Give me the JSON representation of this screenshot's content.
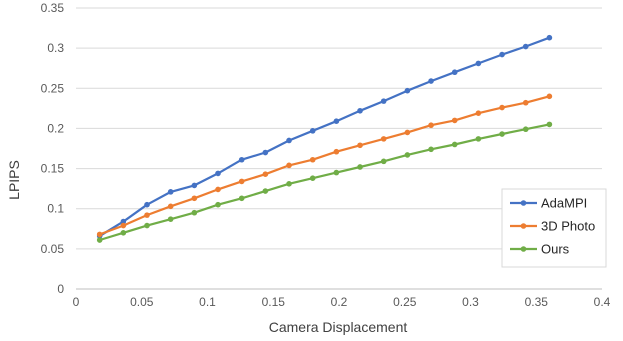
{
  "chart_data": {
    "type": "line",
    "title": "",
    "xlabel": "Camera Displacement",
    "ylabel": "LPIPS",
    "xlim": [
      0,
      0.4
    ],
    "ylim": [
      0,
      0.35
    ],
    "x_ticks": [
      "0",
      "0.05",
      "0.1",
      "0.15",
      "0.2",
      "0.25",
      "0.3",
      "0.35",
      "0.4"
    ],
    "y_ticks": [
      "0",
      "0.05",
      "0.1",
      "0.15",
      "0.2",
      "0.25",
      "0.3",
      "0.35"
    ],
    "grid": "horizontal",
    "legend_position": "bottom-right",
    "x": [
      0.018,
      0.036,
      0.054,
      0.072,
      0.09,
      0.108,
      0.126,
      0.144,
      0.162,
      0.18,
      0.198,
      0.216,
      0.234,
      0.252,
      0.27,
      0.288,
      0.306,
      0.324,
      0.342,
      0.36
    ],
    "series": [
      {
        "name": "AdaMPI",
        "color": "#4472C4",
        "values": [
          0.066,
          0.084,
          0.105,
          0.121,
          0.129,
          0.144,
          0.161,
          0.17,
          0.185,
          0.197,
          0.209,
          0.222,
          0.234,
          0.247,
          0.259,
          0.27,
          0.281,
          0.292,
          0.302,
          0.313
        ]
      },
      {
        "name": "3D Photo",
        "color": "#ED7D31",
        "values": [
          0.068,
          0.079,
          0.092,
          0.103,
          0.113,
          0.124,
          0.134,
          0.143,
          0.154,
          0.161,
          0.171,
          0.179,
          0.187,
          0.195,
          0.204,
          0.21,
          0.219,
          0.226,
          0.232,
          0.24
        ]
      },
      {
        "name": "Ours",
        "color": "#70AD47",
        "values": [
          0.061,
          0.07,
          0.079,
          0.087,
          0.095,
          0.105,
          0.113,
          0.122,
          0.131,
          0.138,
          0.145,
          0.152,
          0.159,
          0.167,
          0.174,
          0.18,
          0.187,
          0.193,
          0.199,
          0.205
        ]
      }
    ]
  }
}
